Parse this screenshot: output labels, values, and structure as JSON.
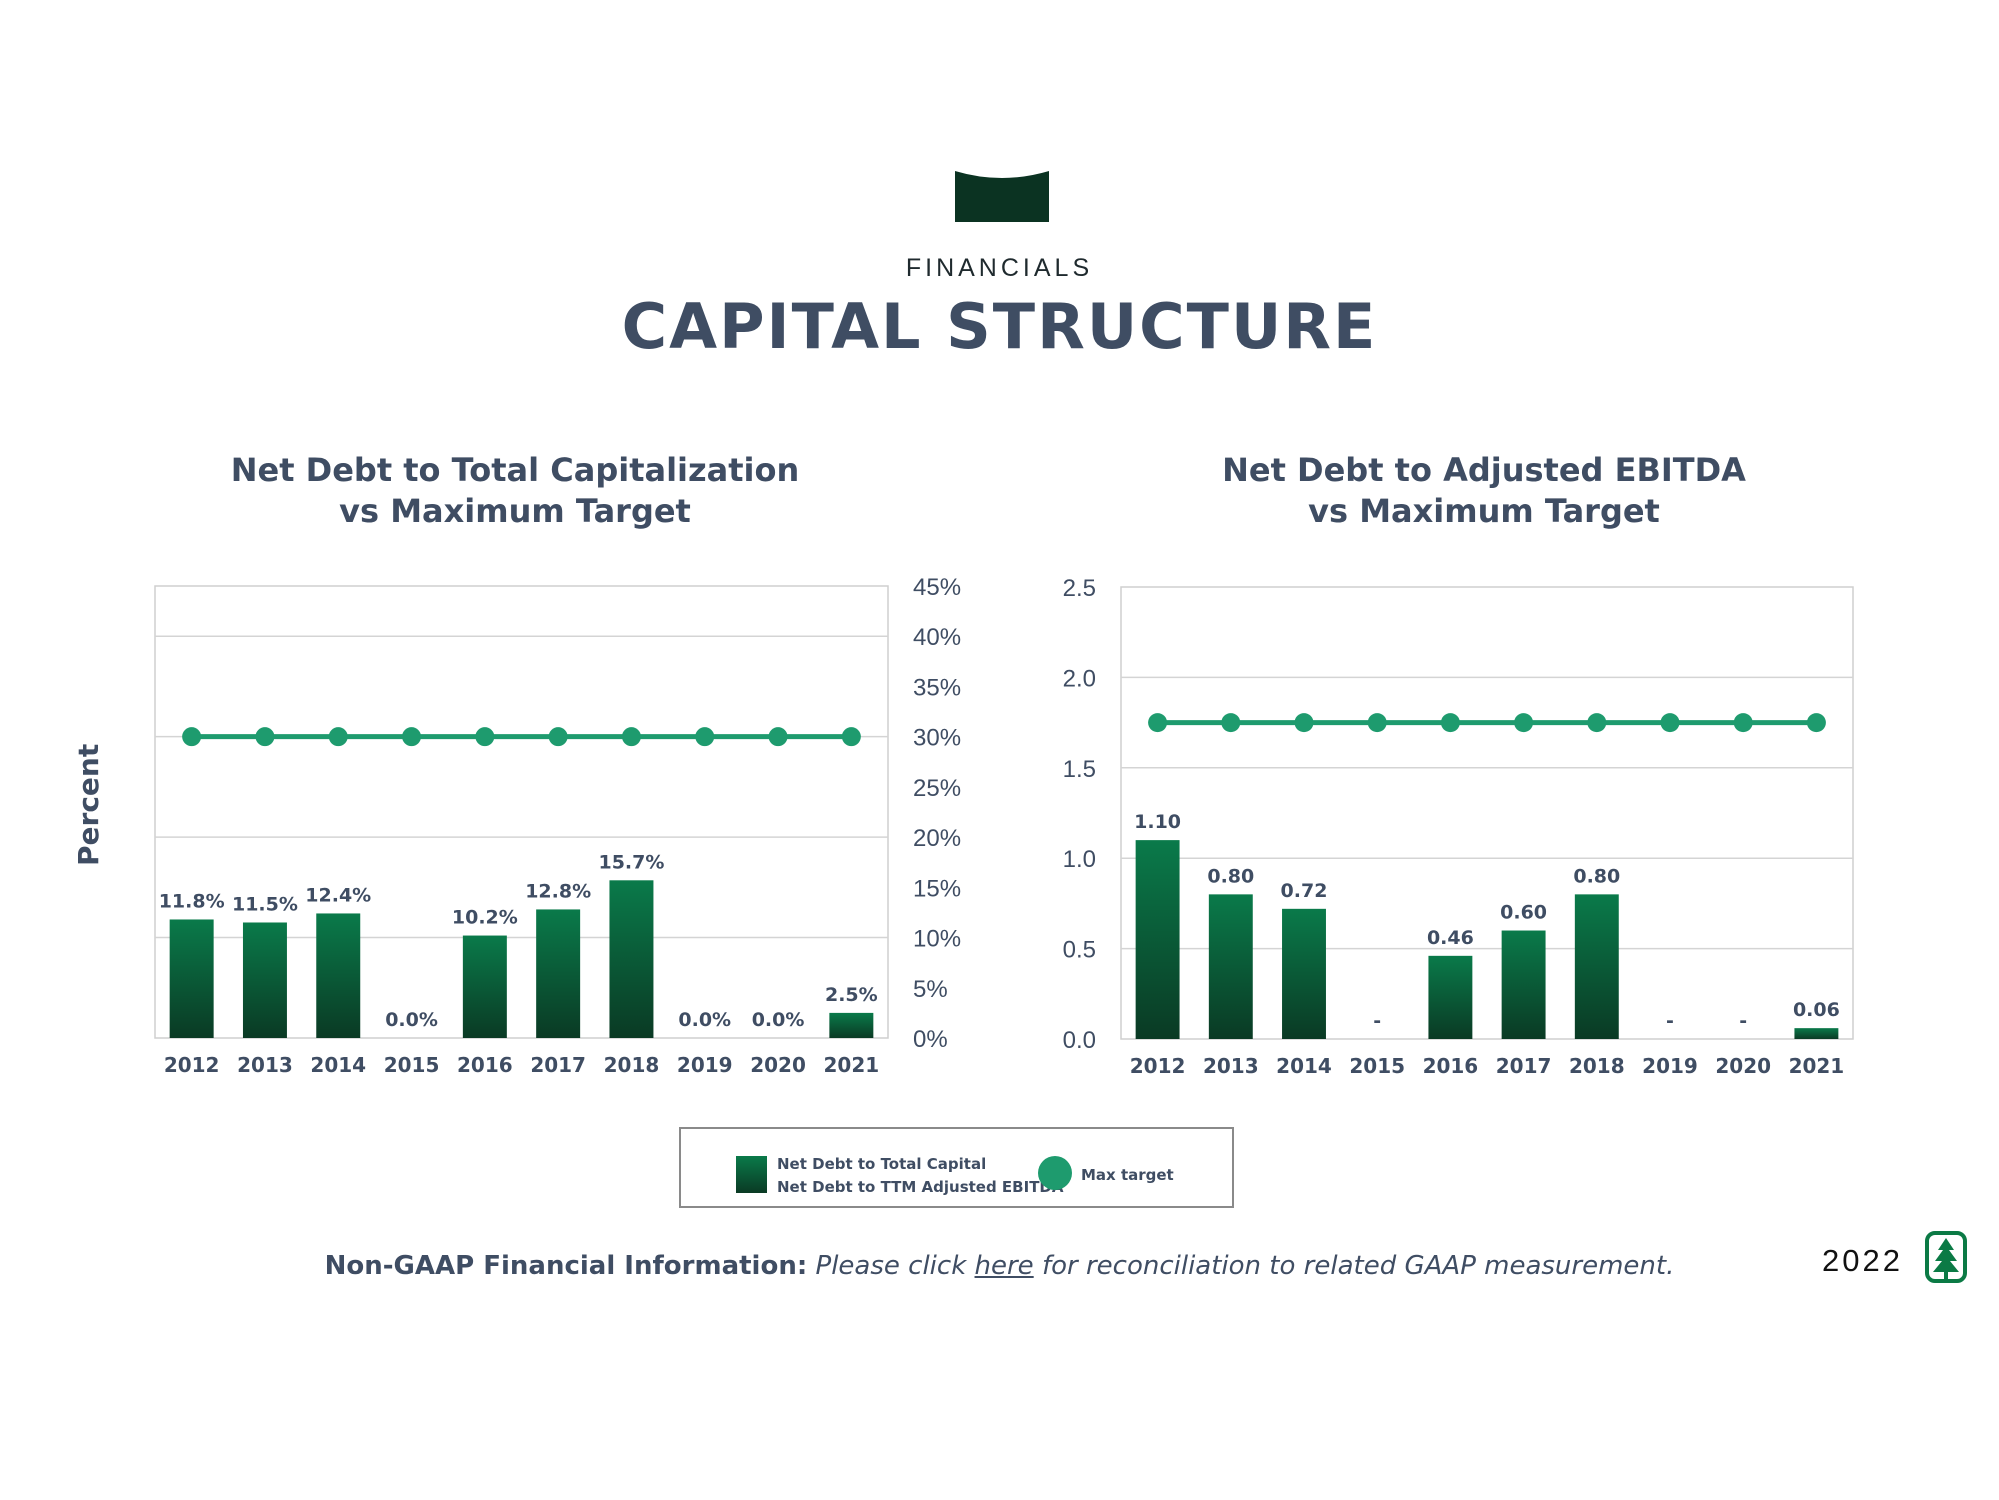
{
  "header": {
    "eyebrow": "FINANCIALS",
    "title": "CAPITAL STRUCTURE"
  },
  "colors": {
    "bar_top": "#0a7a4a",
    "bar_bottom": "#0a3a24",
    "target_line": "#1e9b6e",
    "title_text": "#3f4d63",
    "banner": "#0b3322"
  },
  "y_axis_title": "Percent",
  "chart_data": [
    {
      "type": "bar",
      "title_line1": "Net Debt to Total Capitalization",
      "title_line2": "vs Maximum Target",
      "categories": [
        "2012",
        "2013",
        "2014",
        "2015",
        "2016",
        "2017",
        "2018",
        "2019",
        "2020",
        "2021"
      ],
      "series": [
        {
          "values": [
            11.8,
            11.5,
            12.4,
            0.0,
            10.2,
            12.8,
            15.7,
            0.0,
            0.0,
            2.5
          ],
          "labels": [
            "11.8%",
            "11.5%",
            "12.4%",
            "0.0%",
            "10.2%",
            "12.8%",
            "15.7%",
            "0.0%",
            "0.0%",
            "2.5%"
          ]
        },
        {
          "values": [
            30,
            30,
            30,
            30,
            30,
            30,
            30,
            30,
            30,
            30
          ],
          "line": true
        }
      ],
      "ylim": [
        0,
        45
      ],
      "yticks": [
        "0%",
        "5%",
        "10%",
        "15%",
        "20%",
        "25%",
        "30%",
        "35%",
        "40%",
        "45%"
      ],
      "ytick_values": [
        0,
        5,
        10,
        15,
        20,
        25,
        30,
        35,
        40,
        45
      ],
      "gridlines": [
        10,
        20,
        30,
        40
      ],
      "y_axis_side": "right"
    },
    {
      "type": "bar",
      "title_line1": "Net Debt to Adjusted EBITDA",
      "title_line2": "vs Maximum Target",
      "categories": [
        "2012",
        "2013",
        "2014",
        "2015",
        "2016",
        "2017",
        "2018",
        "2019",
        "2020",
        "2021"
      ],
      "series": [
        {
          "values": [
            1.1,
            0.8,
            0.72,
            0,
            0.46,
            0.6,
            0.8,
            0,
            0,
            0.06
          ],
          "labels": [
            "1.10",
            "0.80",
            "0.72",
            "-",
            "0.46",
            "0.60",
            "0.80",
            "-",
            "-",
            "0.06"
          ]
        },
        {
          "values": [
            1.75,
            1.75,
            1.75,
            1.75,
            1.75,
            1.75,
            1.75,
            1.75,
            1.75,
            1.75
          ],
          "line": true
        }
      ],
      "ylim": [
        0,
        2.5
      ],
      "yticks": [
        "0.0",
        "0.5",
        "1.0",
        "1.5",
        "2.0",
        "2.5"
      ],
      "ytick_values": [
        0,
        0.5,
        1.0,
        1.5,
        2.0,
        2.5
      ],
      "gridlines": [
        0.5,
        1.0,
        1.5,
        2.0
      ],
      "y_axis_side": "left"
    }
  ],
  "legend": {
    "bar_label_1": "Net Debt to Total Capital",
    "bar_label_2": "Net Debt to TTM Adjusted EBITDA",
    "line_label": "Max target"
  },
  "footnote": {
    "bold": "Non-GAAP Financial Information:",
    "italic_pre": "Please click",
    "link": "here",
    "italic_post": "for reconciliation to related GAAP measurement."
  },
  "year_badge": "2022",
  "icons": {
    "banner": "ribbon-banner-icon",
    "logo": "tree-logo-icon"
  }
}
